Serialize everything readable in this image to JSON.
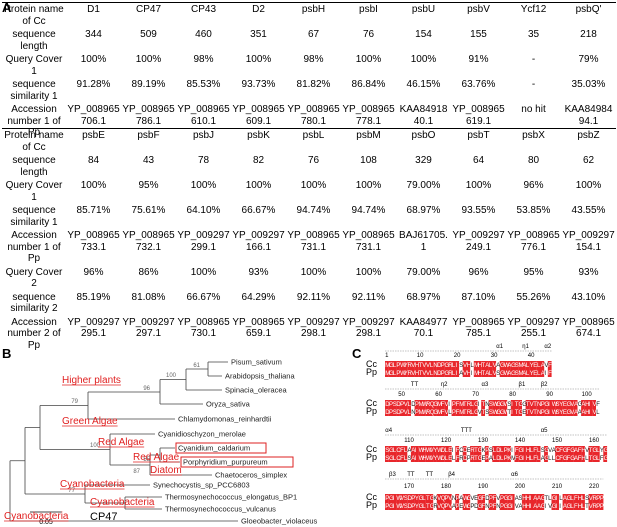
{
  "panels": {
    "a": "A",
    "b": "B",
    "c": "C"
  },
  "table1": {
    "header": [
      "Protein name of Cc",
      "D1",
      "CP47",
      "CP43",
      "D2",
      "psbH",
      "psbI",
      "psbU",
      "psbV",
      "Ycf12",
      "psbQ'"
    ],
    "rows": [
      [
        "sequence length",
        "344",
        "509",
        "460",
        "351",
        "67",
        "76",
        "154",
        "155",
        "35",
        "218"
      ],
      [
        "Query Cover 1",
        "100%",
        "100%",
        "98%",
        "100%",
        "98%",
        "100%",
        "100%",
        "91%",
        "-",
        "79%"
      ],
      [
        "sequence similarity 1",
        "91.28%",
        "89.19%",
        "85.53%",
        "93.73%",
        "81.82%",
        "86.84%",
        "46.15%",
        "63.76%",
        "-",
        "35.03%"
      ],
      [
        "Accession number 1 of Pp",
        "YP_008965706.1",
        "YP_008965786.1",
        "YP_008965610.1",
        "YP_008965609.1",
        "YP_008965780.1",
        "YP_008965778.1",
        "KAA8491840.1",
        "YP_008965619.1",
        "no hit",
        "KAA8498494.1"
      ]
    ]
  },
  "table2": {
    "header": [
      "Protein name of Cc",
      "psbE",
      "psbF",
      "psbJ",
      "psbK",
      "psbL",
      "psbM",
      "psbO",
      "psbT",
      "psbX",
      "psbZ"
    ],
    "rows": [
      [
        "sequence length",
        "84",
        "43",
        "78",
        "82",
        "76",
        "108",
        "329",
        "64",
        "80",
        "62"
      ],
      [
        "Query Cover 1",
        "100%",
        "95%",
        "100%",
        "100%",
        "100%",
        "100%",
        "79.00%",
        "100%",
        "96%",
        "100%"
      ],
      [
        "sequence similarity 1",
        "85.71%",
        "75.61%",
        "64.10%",
        "66.67%",
        "94.74%",
        "94.74%",
        "68.97%",
        "93.55%",
        "53.85%",
        "43.55%"
      ],
      [
        "Accession number 1 of Pp",
        "YP_008965733.1",
        "YP_008965732.1",
        "YP_009297299.1",
        "YP_009297166.1",
        "YP_008965731.1",
        "YP_008965731.1",
        "BAJ61705.1",
        "YP_009297249.1",
        "YP_008965776.1",
        "YP_009297154.1"
      ],
      [
        "Query Cover 2",
        "96%",
        "86%",
        "100%",
        "93%",
        "100%",
        "100%",
        "79.00%",
        "96%",
        "95%",
        "93%"
      ],
      [
        "sequence similarity 2",
        "85.19%",
        "81.08%",
        "66.67%",
        "64.29%",
        "92.11%",
        "92.11%",
        "68.97%",
        "87.10%",
        "55.26%",
        "43.10%"
      ],
      [
        "Accession number 2 of Pp",
        "YP_009297295.1",
        "YP_009297297.1",
        "YP_008965730.1",
        "YP_008965659.1",
        "YP_009297298.1",
        "YP_009297298.1",
        "KAA8497770.1",
        "YP_008965785.1",
        "YP_009297255.1",
        "YP_008965674.1"
      ]
    ]
  },
  "tree": {
    "taxa": [
      "Pisum_sativum",
      "Arabidopsis_thaliana",
      "Spinacia_oleracea",
      "Oryza_sativa",
      "Chlamydomonas_reinhardtii",
      "Cyanidioschyzon_merolae",
      "Cyanidium_caldarium",
      "Porphyridium_purpureum",
      "Chaetoceros_simplex",
      "Synechocystis_sp_PCC6803",
      "Thermosynechococcus_elongatus_BP1",
      "Thermosynechococcus_vulcanus",
      "Gloeobacter_violaceus"
    ],
    "groups": [
      "Higher plants",
      "Green Algae",
      "Red Algae",
      "Red Algae",
      "Diatom",
      "Cyanobacteria",
      "Cyanobacteria",
      "Cyanobacteria"
    ],
    "bootstrap": [
      "61",
      "100",
      "96",
      "79",
      "100",
      "55",
      "87",
      "77"
    ],
    "scale": "0.05",
    "label": "CP47"
  },
  "alignment": {
    "names": [
      "Cc",
      "Pp"
    ],
    "blocks": [
      {
        "numbers": [
          "1",
          "10",
          "20",
          "30",
          "40"
        ],
        "structure": [
          "α1",
          "η1",
          "α2"
        ],
        "cc": "MGLPWYRVHTVVLNDPGRLISVHLMHTALVAGWAGSMALYELAVF",
        "pp": "MGLPWYRVHTVVLNDPGRLIAVHIMHTALVSGWAGSMALYELAIF"
      },
      {
        "numbers": [
          "50",
          "60",
          "70",
          "80",
          "90",
          "100"
        ],
        "structure": [
          "TT",
          "η2",
          "α3",
          "β1",
          "β2"
        ],
        "cc": "DPSDPVLDPMWRQGMFVIPFMTRLGITNSWGGWSITGGTVTNPGIWSYEGVAGAHIVF",
        "pp": "DPSDPVLNPMWRQGMFVLPFMTRLGVTSSWGGWTITGETVTNPGIWSYEGVAAAHIVL"
      },
      {
        "numbers": [
          "110",
          "120",
          "130",
          "140",
          "150",
          "160"
        ],
        "structure": [
          "α4",
          "TTT",
          "α5"
        ],
        "cc": "SGLCFLAAIWHWVYWDLEIFCDERTGKPSLDLPKIFGIHLFLSGVACFGFGAFHVTGLYG",
        "pp": "SGLCFLSAIWHWVYWDLELFRDPRTGEPALDLPKMFGIHLFLAGLLCFGFGAFHLTGLFG"
      },
      {
        "numbers": [
          "170",
          "180",
          "190",
          "200",
          "210",
          "220"
        ],
        "structure": [
          "β3",
          "TT",
          "TT",
          "β4",
          "α6"
        ],
        "cc": "PGIWVSDPYGLTGKVQPVNPAWGVEGFDPFVPGGIASHHIAAGTLGILAGLFHLSVRPP",
        "pp": "PGIWVSDPYGLTGRVQPVAPEWGPDGFNPFNPGGIVAHHIAAGIVGIIAGLFHLTVRPP"
      }
    ]
  }
}
